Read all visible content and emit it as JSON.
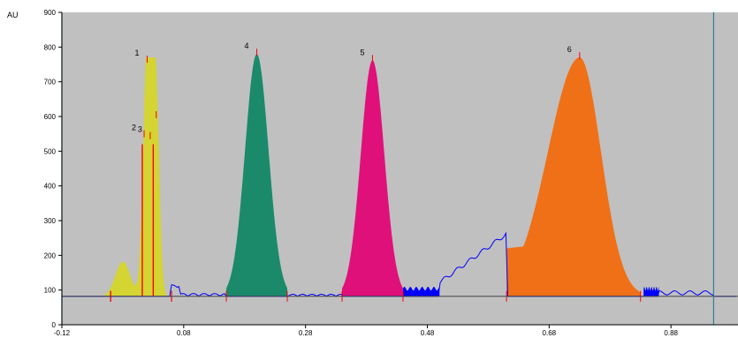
{
  "chart_data": {
    "type": "area",
    "title": "",
    "xlabel": "",
    "ylabel": "AU",
    "xlim": [
      -0.12,
      0.99
    ],
    "ylim": [
      0,
      900
    ],
    "x_ticks": [
      "-0.12",
      "0.08",
      "0.28",
      "0.48",
      "0.68",
      "0.88"
    ],
    "x_tick_values": [
      -0.12,
      0.08,
      0.28,
      0.48,
      0.68,
      0.88
    ],
    "y_ticks": [
      "0",
      "100",
      "200",
      "300",
      "400",
      "500",
      "600",
      "700",
      "800",
      "900"
    ],
    "y_tick_values": [
      0,
      100,
      200,
      300,
      400,
      500,
      600,
      700,
      800,
      900
    ],
    "baseline": 82,
    "background_color": "#c0c0c0",
    "trace_color": "#0000ff",
    "marker_color": "#ff0000",
    "vertical_lines_x": [
      -0.12,
      0.95
    ],
    "peaks": [
      {
        "label": "1",
        "apex_x": 0.02,
        "height": 760,
        "start_x": -0.04,
        "end_x": 0.06,
        "color": "#d4d433"
      },
      {
        "label": "2",
        "apex_x": 0.015,
        "height": 545,
        "start_x": -0.04,
        "end_x": 0.06,
        "color": "#d4d433"
      },
      {
        "label": "3",
        "apex_x": 0.025,
        "height": 540,
        "start_x": -0.04,
        "end_x": 0.06,
        "color": "#d4d433"
      },
      {
        "label": "",
        "apex_x": 0.035,
        "height": 600,
        "start_x": -0.04,
        "end_x": 0.06,
        "color": "#d4d433"
      },
      {
        "label": "4",
        "apex_x": 0.2,
        "height": 780,
        "start_x": 0.15,
        "end_x": 0.25,
        "color": "#1a8a6a"
      },
      {
        "label": "5",
        "apex_x": 0.39,
        "height": 762,
        "start_x": 0.34,
        "end_x": 0.44,
        "color": "#e0107a"
      },
      {
        "label": "6",
        "apex_x": 0.73,
        "height": 770,
        "start_x": 0.61,
        "end_x": 0.83,
        "color": "#f07018"
      }
    ],
    "small_blue_regions": [
      {
        "start_x": 0.44,
        "end_x": 0.5
      },
      {
        "start_x": 0.835,
        "end_x": 0.86
      }
    ]
  }
}
